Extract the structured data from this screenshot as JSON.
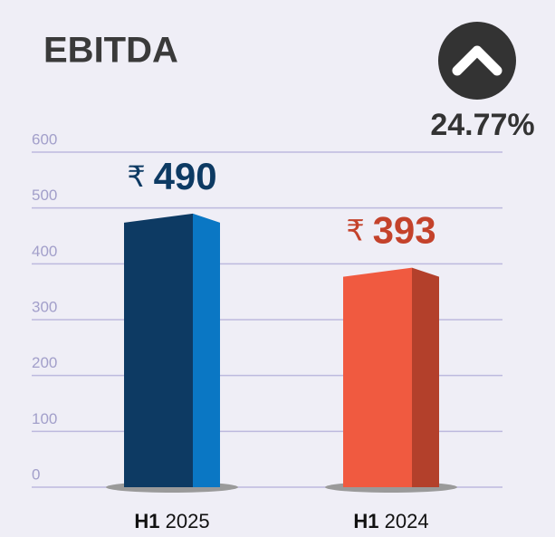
{
  "chart_data": {
    "type": "bar3d",
    "title": "EBITDA",
    "annotation": "24.77%",
    "categories": [
      "H1 2025",
      "H1 2024"
    ],
    "values": [
      490,
      393
    ],
    "value_labels": [
      "₹ 490",
      "₹ 393"
    ],
    "colors": [
      "#0d3a63",
      "#f05a40"
    ],
    "side_colors": [
      "#0a77c4",
      "#b3402b"
    ],
    "label_colors": [
      "#0d3a63",
      "#c4422b"
    ],
    "ylim": [
      0,
      600
    ],
    "yticks": [
      0,
      100,
      200,
      300,
      400,
      500,
      600
    ],
    "grid": true
  }
}
